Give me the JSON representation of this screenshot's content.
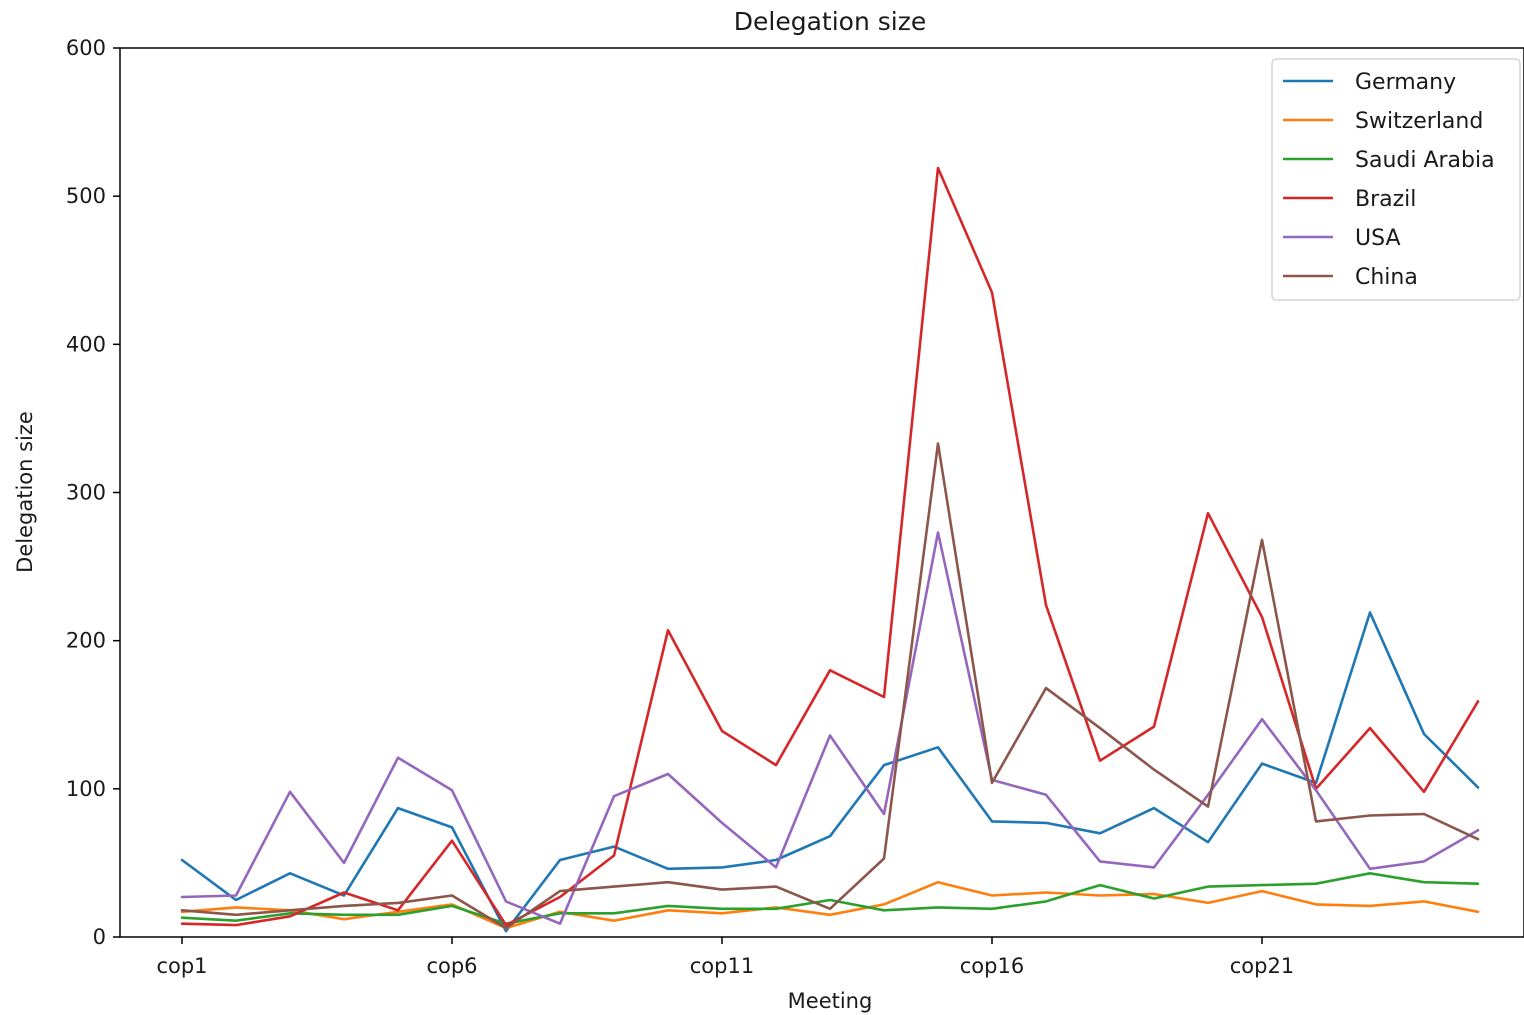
{
  "chart_data": {
    "type": "line",
    "title": "Delegation size",
    "xlabel": "Meeting",
    "ylabel": "Delegation size",
    "ylim": [
      0,
      600
    ],
    "yticks": [
      0,
      100,
      200,
      300,
      400,
      500,
      600
    ],
    "x": [
      "cop1",
      "cop2",
      "cop3",
      "cop4",
      "cop5",
      "cop6",
      "cop7",
      "cop8",
      "cop9",
      "cop10",
      "cop11",
      "cop12",
      "cop13",
      "cop14",
      "cop15",
      "cop16",
      "cop17",
      "cop18",
      "cop19",
      "cop20",
      "cop21",
      "cop22",
      "cop23",
      "cop24",
      "cop25"
    ],
    "xtick_labels": [
      "cop1",
      "cop6",
      "cop11",
      "cop16",
      "cop21"
    ],
    "grid": false,
    "legend_position": "top-right",
    "series": [
      {
        "name": "Germany",
        "color": "#1f77b4",
        "values": [
          52,
          25,
          43,
          28,
          87,
          74,
          4,
          52,
          61,
          46,
          47,
          52,
          68,
          116,
          128,
          78,
          77,
          70,
          87,
          64,
          117,
          104,
          219,
          137,
          101
        ]
      },
      {
        "name": "Switzerland",
        "color": "#ff7f0e",
        "values": [
          17,
          20,
          18,
          12,
          17,
          22,
          6,
          17,
          11,
          18,
          16,
          20,
          15,
          22,
          37,
          28,
          30,
          28,
          29,
          23,
          31,
          22,
          21,
          24,
          17
        ]
      },
      {
        "name": "Saudi Arabia",
        "color": "#2ca02c",
        "values": [
          13,
          11,
          16,
          15,
          15,
          21,
          9,
          16,
          16,
          21,
          19,
          19,
          25,
          18,
          20,
          19,
          24,
          35,
          26,
          34,
          35,
          36,
          43,
          37,
          36
        ]
      },
      {
        "name": "Brazil",
        "color": "#d62728",
        "values": [
          9,
          8,
          14,
          30,
          18,
          65,
          8,
          27,
          55,
          207,
          139,
          116,
          180,
          162,
          519,
          435,
          224,
          119,
          142,
          286,
          216,
          100,
          141,
          98,
          159
        ]
      },
      {
        "name": "USA",
        "color": "#9467bd",
        "values": [
          27,
          28,
          98,
          50,
          121,
          99,
          24,
          9,
          95,
          110,
          77,
          47,
          136,
          83,
          273,
          106,
          96,
          51,
          47,
          96,
          147,
          99,
          46,
          51,
          72
        ]
      },
      {
        "name": "China",
        "color": "#8c564b",
        "values": [
          18,
          15,
          18,
          21,
          23,
          28,
          6,
          31,
          34,
          37,
          32,
          34,
          19,
          53,
          333,
          104,
          168,
          141,
          113,
          88,
          268,
          78,
          82,
          83,
          66
        ]
      }
    ]
  }
}
